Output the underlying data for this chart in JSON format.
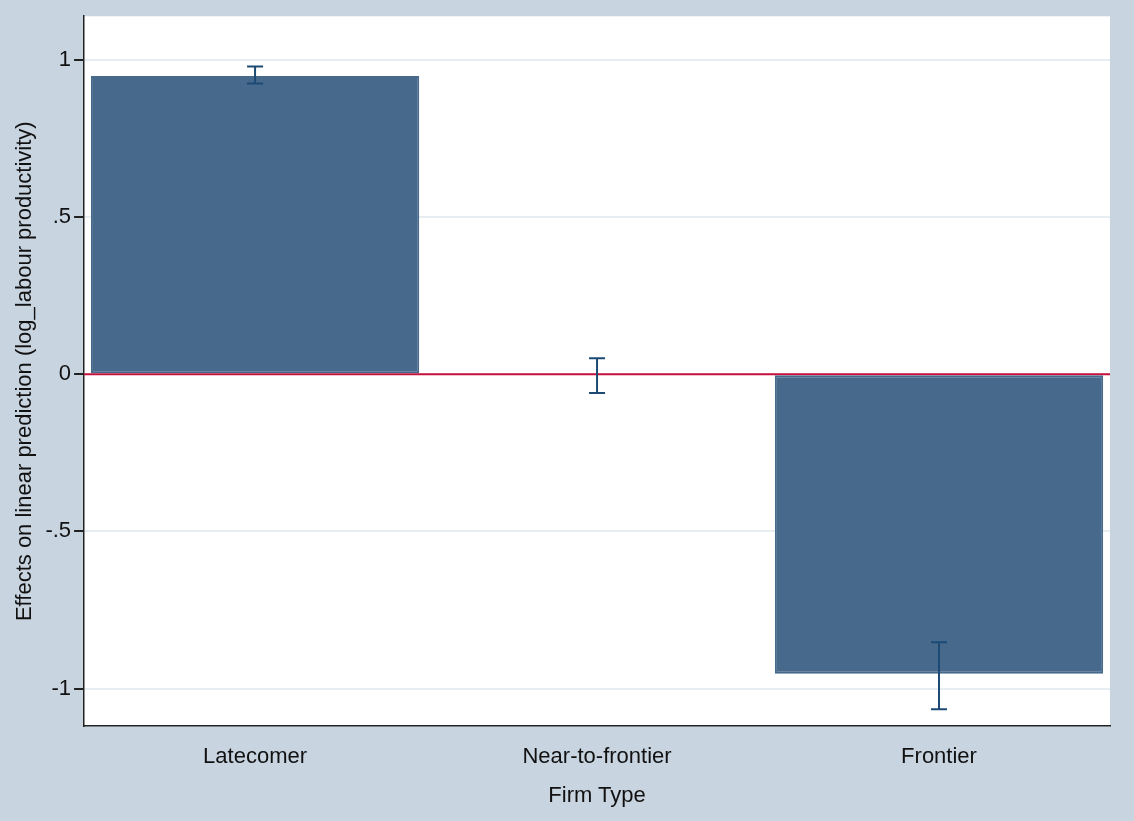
{
  "chart_data": {
    "type": "bar",
    "xlabel": "Firm Type",
    "ylabel": "Effects on linear prediction (log_labour productivity)",
    "categories": [
      "Latecomer",
      "Near-to-frontier",
      "Frontier"
    ],
    "values": [
      0.95,
      -0.003,
      -0.953
    ],
    "color": "#476a8c",
    "errors": [
      [
        0.926,
        0.98
      ],
      [
        -0.059,
        0.051
      ],
      [
        -1.066,
        -0.853
      ]
    ],
    "ylim": [
      -1.12,
      1.14
    ],
    "yticks": [
      {
        "value": -1,
        "label": "-1"
      },
      {
        "value": -0.5,
        "label": "-.5"
      },
      {
        "value": 0,
        "label": "0"
      },
      {
        "value": 0.5,
        "label": ".5"
      },
      {
        "value": 1,
        "label": "1"
      }
    ],
    "ref_lines": [
      {
        "axis": "y",
        "value": 0,
        "color": "#c8103c"
      }
    ],
    "grid": "y",
    "legend": false
  }
}
